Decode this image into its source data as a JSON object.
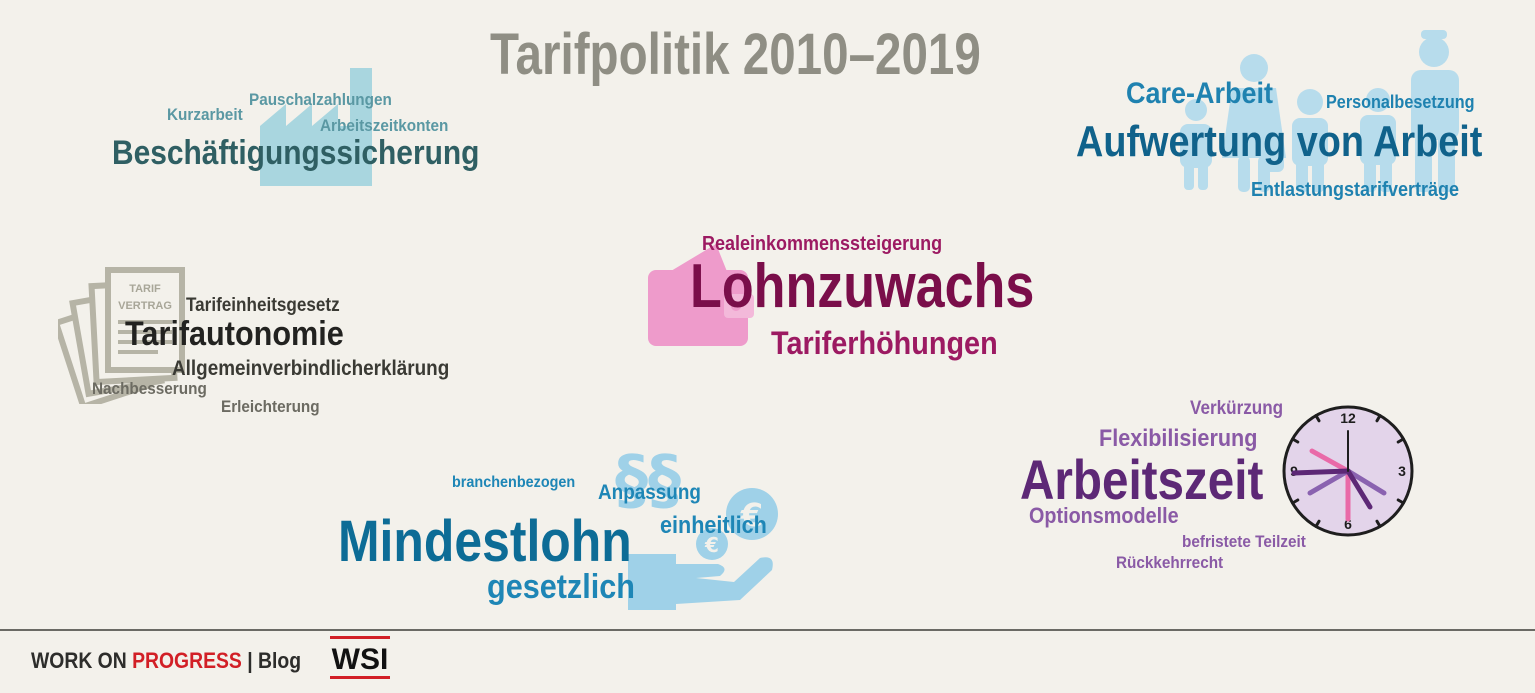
{
  "title": "Tarifpolitik 2010–2019",
  "colors": {
    "background": "#f3f1eb",
    "title": "#8f8e84",
    "beschaeftigung": "#2f5f63",
    "aufwertung": "#10628b",
    "tarifautonomie": "#222220",
    "lohnzuwachs": "#7a0e4a",
    "mindestlohn": "#0d6c96",
    "arbeitszeit": "#5d2876",
    "footer_accent": "#d21f26"
  },
  "clusters": {
    "beschaeftigung": {
      "icon": "factory-icon",
      "main": "Beschäftigungssicherung",
      "terms": [
        "Kurzarbeit",
        "Pauschalzahlungen",
        "Arbeitszeitkonten"
      ]
    },
    "aufwertung": {
      "icon": "people-icon",
      "main": "Aufwertung von Arbeit",
      "terms": [
        "Care-Arbeit",
        "Personalbesetzung",
        "Entlastungstarifverträge"
      ]
    },
    "tarifautonomie": {
      "icon": "contract-documents-icon",
      "icon_text_1": "TARIF",
      "icon_text_2": "VERTRAG",
      "main": "Tarifautonomie",
      "terms": [
        "Tarifeinheitsgesetz",
        "Allgemeinverbindlicherklärung",
        "Nachbesserung",
        "Erleichterung"
      ]
    },
    "lohnzuwachs": {
      "icon": "wallet-icon",
      "main": "Lohnzuwachs",
      "terms": [
        "Realeinkommenssteigerung",
        "Tariferhöhungen"
      ]
    },
    "mindestlohn": {
      "icon": "hand-coins-paragraph-icon",
      "main": "Mindestlohn",
      "terms": [
        "branchenbezogen",
        "Anpassung",
        "einheitlich",
        "gesetzlich"
      ]
    },
    "arbeitszeit": {
      "icon": "clock-icon",
      "clock_numbers": [
        "12",
        "3",
        "6",
        "9"
      ],
      "main": "Arbeitszeit",
      "terms": [
        "Verkürzung",
        "Flexibilisierung",
        "Optionsmodelle",
        "befristete Teilzeit",
        "Rückkehrrecht"
      ]
    }
  },
  "footer": {
    "brand_1": "WORK ON ",
    "brand_2": "PROGRESS",
    "separator": " | ",
    "blog": "Blog",
    "logo": "WSI"
  }
}
